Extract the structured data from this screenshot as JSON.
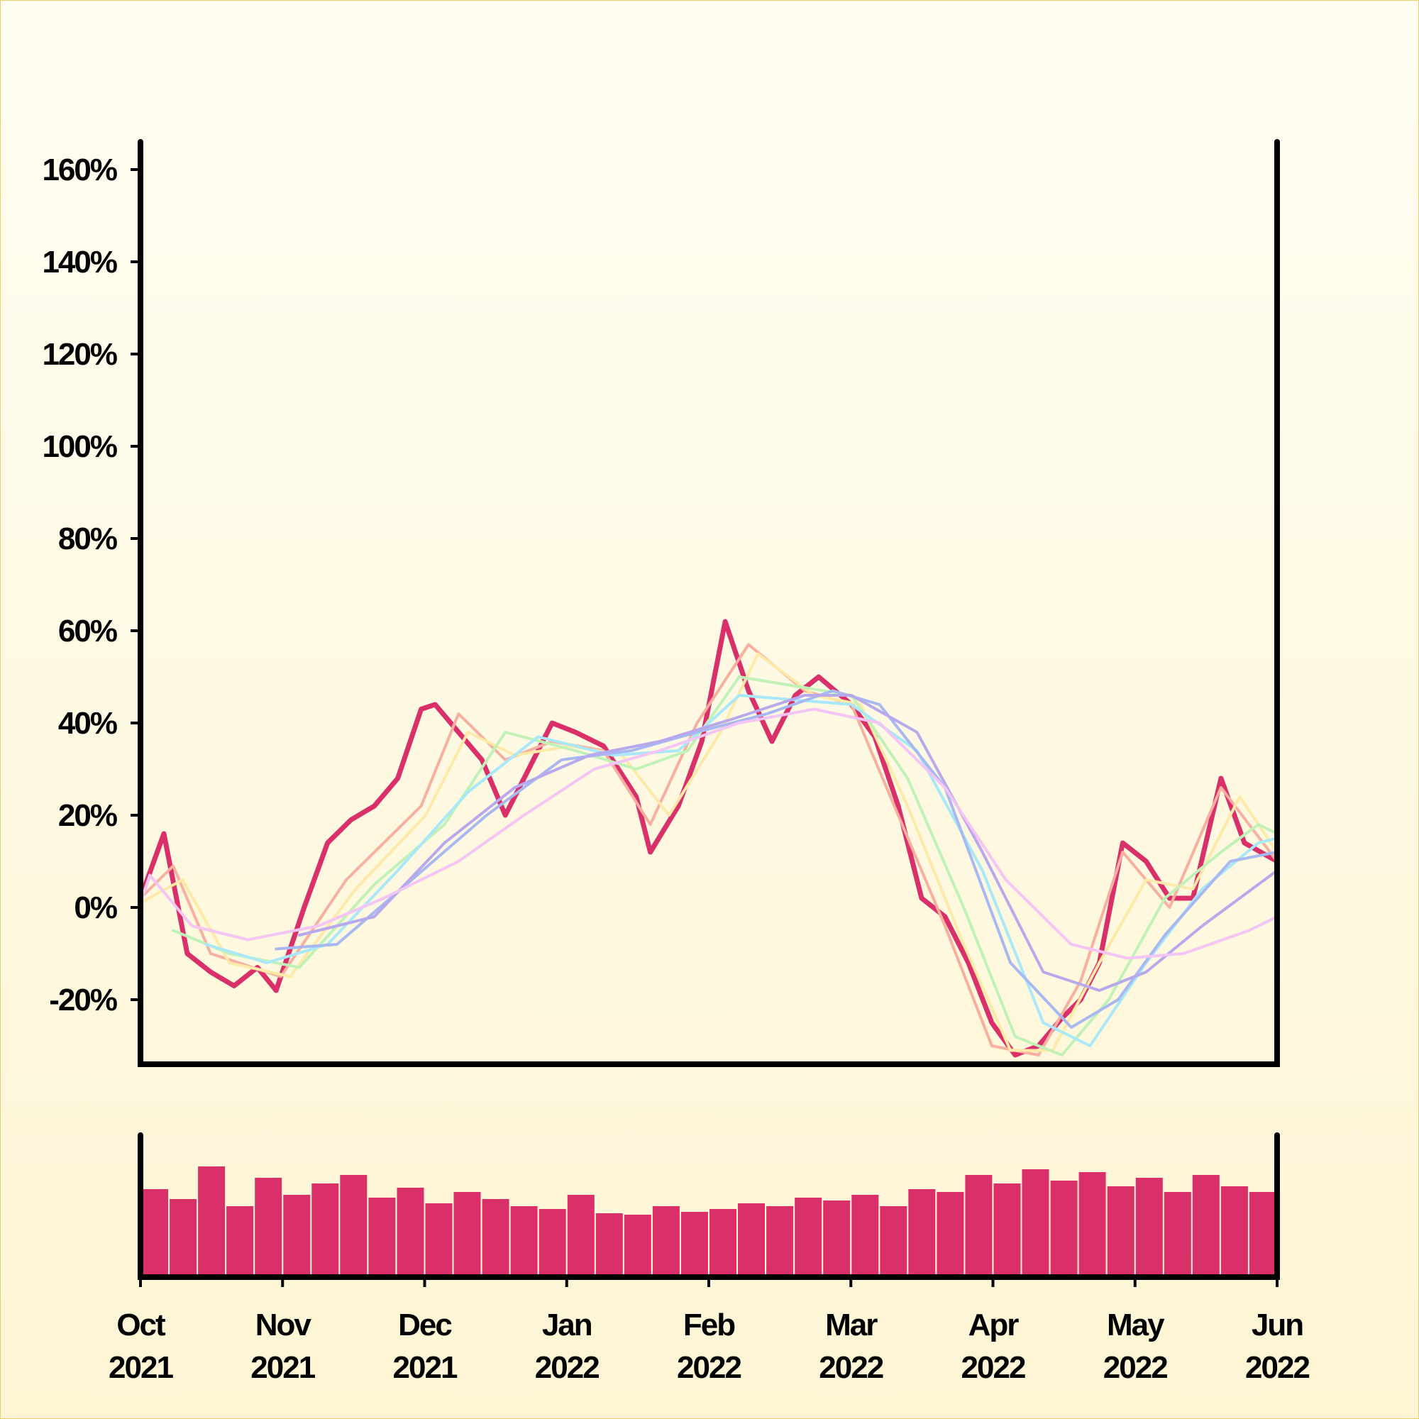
{
  "chart_data": [
    {
      "type": "line",
      "title": "",
      "xlabel": "",
      "ylabel": "",
      "y_unit": "%",
      "ylim": [
        -34,
        166
      ],
      "xlim": [
        "2021-10-01",
        "2022-06-01"
      ],
      "y_ticks": [
        "-20%",
        "0%",
        "20%",
        "40%",
        "60%",
        "80%",
        "100%",
        "120%",
        "140%",
        "160%"
      ],
      "x_ticks": [
        {
          "month": "Oct",
          "year": "2021"
        },
        {
          "month": "Nov",
          "year": "2021"
        },
        {
          "month": "Dec",
          "year": "2021"
        },
        {
          "month": "Jan",
          "year": "2022"
        },
        {
          "month": "Feb",
          "year": "2022"
        },
        {
          "month": "Mar",
          "year": "2022"
        },
        {
          "month": "Apr",
          "year": "2022"
        },
        {
          "month": "May",
          "year": "2022"
        },
        {
          "month": "Jun",
          "year": "2022"
        }
      ],
      "legend": "none",
      "grid": false,
      "series": [
        {
          "role": "price",
          "color": "#d9306a",
          "x": [
            "2021-10-01",
            "2021-10-06",
            "2021-10-11",
            "2021-10-16",
            "2021-10-21",
            "2021-10-26",
            "2021-10-30",
            "2021-11-05",
            "2021-11-10",
            "2021-11-15",
            "2021-11-20",
            "2021-11-25",
            "2021-11-30",
            "2021-12-03",
            "2021-12-08",
            "2021-12-13",
            "2021-12-18",
            "2021-12-23",
            "2021-12-28",
            "2022-01-02",
            "2022-01-08",
            "2022-01-15",
            "2022-01-18",
            "2022-01-24",
            "2022-01-29",
            "2022-02-03",
            "2022-02-08",
            "2022-02-13",
            "2022-02-18",
            "2022-02-23",
            "2022-03-02",
            "2022-03-07",
            "2022-03-12",
            "2022-03-17",
            "2022-03-22",
            "2022-03-27",
            "2022-04-01",
            "2022-04-06",
            "2022-04-11",
            "2022-04-16",
            "2022-04-20",
            "2022-04-24",
            "2022-04-29",
            "2022-05-04",
            "2022-05-09",
            "2022-05-14",
            "2022-05-20",
            "2022-05-25",
            "2022-06-01"
          ],
          "y": [
            2,
            16,
            -10,
            -14,
            -17,
            -13,
            -18,
            0,
            14,
            19,
            22,
            28,
            43,
            44,
            38,
            32,
            20,
            30,
            40,
            38,
            35,
            24,
            12,
            22,
            36,
            62,
            47,
            36,
            46,
            50,
            44,
            37,
            22,
            2,
            -2,
            -12,
            -25,
            -32,
            -30,
            -24,
            -20,
            -12,
            14,
            10,
            2,
            2,
            28,
            14,
            10
          ]
        },
        {
          "role": "MA",
          "color": "#f7b0a0",
          "x": [
            "2021-10-01",
            "2021-10-08",
            "2021-10-16",
            "2021-10-31",
            "2021-11-14",
            "2021-11-30",
            "2021-12-08",
            "2021-12-18",
            "2021-12-28",
            "2022-01-08",
            "2022-01-18",
            "2022-01-28",
            "2022-02-08",
            "2022-02-20",
            "2022-03-02",
            "2022-03-12",
            "2022-03-22",
            "2022-04-01",
            "2022-04-11",
            "2022-04-20",
            "2022-04-29",
            "2022-05-09",
            "2022-05-20",
            "2022-06-01"
          ],
          "y": [
            2,
            9,
            -10,
            -15,
            6,
            22,
            42,
            32,
            36,
            34,
            18,
            40,
            57,
            47,
            44,
            20,
            -4,
            -30,
            -32,
            -16,
            12,
            0,
            26,
            10
          ]
        },
        {
          "role": "MA",
          "color": "#fde9a8",
          "x": [
            "2021-10-01",
            "2021-10-10",
            "2021-10-20",
            "2021-11-02",
            "2021-11-16",
            "2021-12-01",
            "2021-12-10",
            "2021-12-20",
            "2022-01-01",
            "2022-01-12",
            "2022-01-22",
            "2022-02-02",
            "2022-02-10",
            "2022-02-22",
            "2022-03-04",
            "2022-03-14",
            "2022-03-26",
            "2022-04-05",
            "2022-04-14",
            "2022-04-24",
            "2022-05-04",
            "2022-05-14",
            "2022-05-24",
            "2022-06-01"
          ],
          "y": [
            1,
            6,
            -12,
            -15,
            4,
            20,
            38,
            33,
            35,
            33,
            20,
            38,
            55,
            46,
            44,
            22,
            -8,
            -31,
            -31,
            -12,
            6,
            4,
            24,
            12
          ]
        },
        {
          "role": "MA",
          "color": "#c0f2b8",
          "x": [
            "2021-10-08",
            "2021-10-20",
            "2021-11-04",
            "2021-11-20",
            "2021-12-05",
            "2021-12-18",
            "2022-01-02",
            "2022-01-15",
            "2022-01-26",
            "2022-02-06",
            "2022-02-18",
            "2022-03-02",
            "2022-03-14",
            "2022-03-26",
            "2022-04-06",
            "2022-04-16",
            "2022-04-26",
            "2022-05-08",
            "2022-05-20",
            "2022-05-28",
            "2022-06-01"
          ],
          "y": [
            -5,
            -10,
            -13,
            5,
            18,
            38,
            34,
            30,
            34,
            50,
            48,
            46,
            28,
            0,
            -28,
            -32,
            -20,
            2,
            12,
            18,
            16
          ]
        },
        {
          "role": "MA",
          "color": "#a8e8f8",
          "x": [
            "2021-10-15",
            "2021-10-28",
            "2021-11-10",
            "2021-11-25",
            "2021-12-10",
            "2021-12-25",
            "2022-01-10",
            "2022-01-24",
            "2022-02-06",
            "2022-02-18",
            "2022-03-02",
            "2022-03-16",
            "2022-03-30",
            "2022-04-12",
            "2022-04-22",
            "2022-05-04",
            "2022-05-16",
            "2022-05-28",
            "2022-06-01"
          ],
          "y": [
            -8,
            -12,
            -8,
            8,
            25,
            37,
            33,
            34,
            46,
            45,
            44,
            34,
            8,
            -25,
            -30,
            -12,
            4,
            14,
            15
          ]
        },
        {
          "role": "MA",
          "color": "#a8b8f0",
          "x": [
            "2021-10-30",
            "2021-11-12",
            "2021-11-28",
            "2021-12-14",
            "2021-12-30",
            "2022-01-14",
            "2022-01-28",
            "2022-02-12",
            "2022-02-26",
            "2022-03-08",
            "2022-03-22",
            "2022-04-05",
            "2022-04-18",
            "2022-04-28",
            "2022-05-08",
            "2022-05-22",
            "2022-06-01"
          ],
          "y": [
            -9,
            -8,
            6,
            20,
            32,
            34,
            38,
            42,
            47,
            44,
            26,
            -12,
            -26,
            -20,
            -6,
            10,
            12
          ]
        },
        {
          "role": "MA",
          "color": "#b8a8ec",
          "x": [
            "2021-11-04",
            "2021-11-20",
            "2021-12-05",
            "2021-12-20",
            "2022-01-05",
            "2022-01-20",
            "2022-02-05",
            "2022-02-20",
            "2022-03-02",
            "2022-03-16",
            "2022-03-30",
            "2022-04-12",
            "2022-04-24",
            "2022-05-04",
            "2022-05-16",
            "2022-05-28",
            "2022-06-01"
          ],
          "y": [
            -6,
            -2,
            14,
            26,
            33,
            36,
            41,
            46,
            46,
            38,
            12,
            -14,
            -18,
            -14,
            -4,
            5,
            8
          ]
        },
        {
          "role": "MA",
          "color": "#f4c4f4",
          "x": [
            "2021-10-01",
            "2021-10-03",
            "2021-10-12",
            "2021-10-24",
            "2021-11-08",
            "2021-11-22",
            "2021-12-08",
            "2021-12-22",
            "2022-01-06",
            "2022-01-20",
            "2022-02-06",
            "2022-02-22",
            "2022-03-08",
            "2022-03-22",
            "2022-04-04",
            "2022-04-18",
            "2022-04-30",
            "2022-05-12",
            "2022-05-26",
            "2022-06-01"
          ],
          "y": [
            1,
            7,
            -4,
            -7,
            -4,
            2,
            10,
            20,
            30,
            34,
            40,
            43,
            40,
            26,
            6,
            -8,
            -11,
            -10,
            -5,
            -2
          ]
        }
      ]
    },
    {
      "type": "bar",
      "role": "volume",
      "color": "#d9306a",
      "levels": [
        0.62,
        0.55,
        0.78,
        0.5,
        0.7,
        0.58,
        0.66,
        0.72,
        0.56,
        0.63,
        0.52,
        0.6,
        0.55,
        0.5,
        0.48,
        0.58,
        0.45,
        0.44,
        0.5,
        0.46,
        0.48,
        0.52,
        0.5,
        0.56,
        0.54,
        0.58,
        0.5,
        0.62,
        0.6,
        0.72,
        0.66,
        0.76,
        0.68,
        0.74,
        0.64,
        0.7,
        0.6,
        0.72,
        0.64,
        0.6
      ]
    }
  ]
}
